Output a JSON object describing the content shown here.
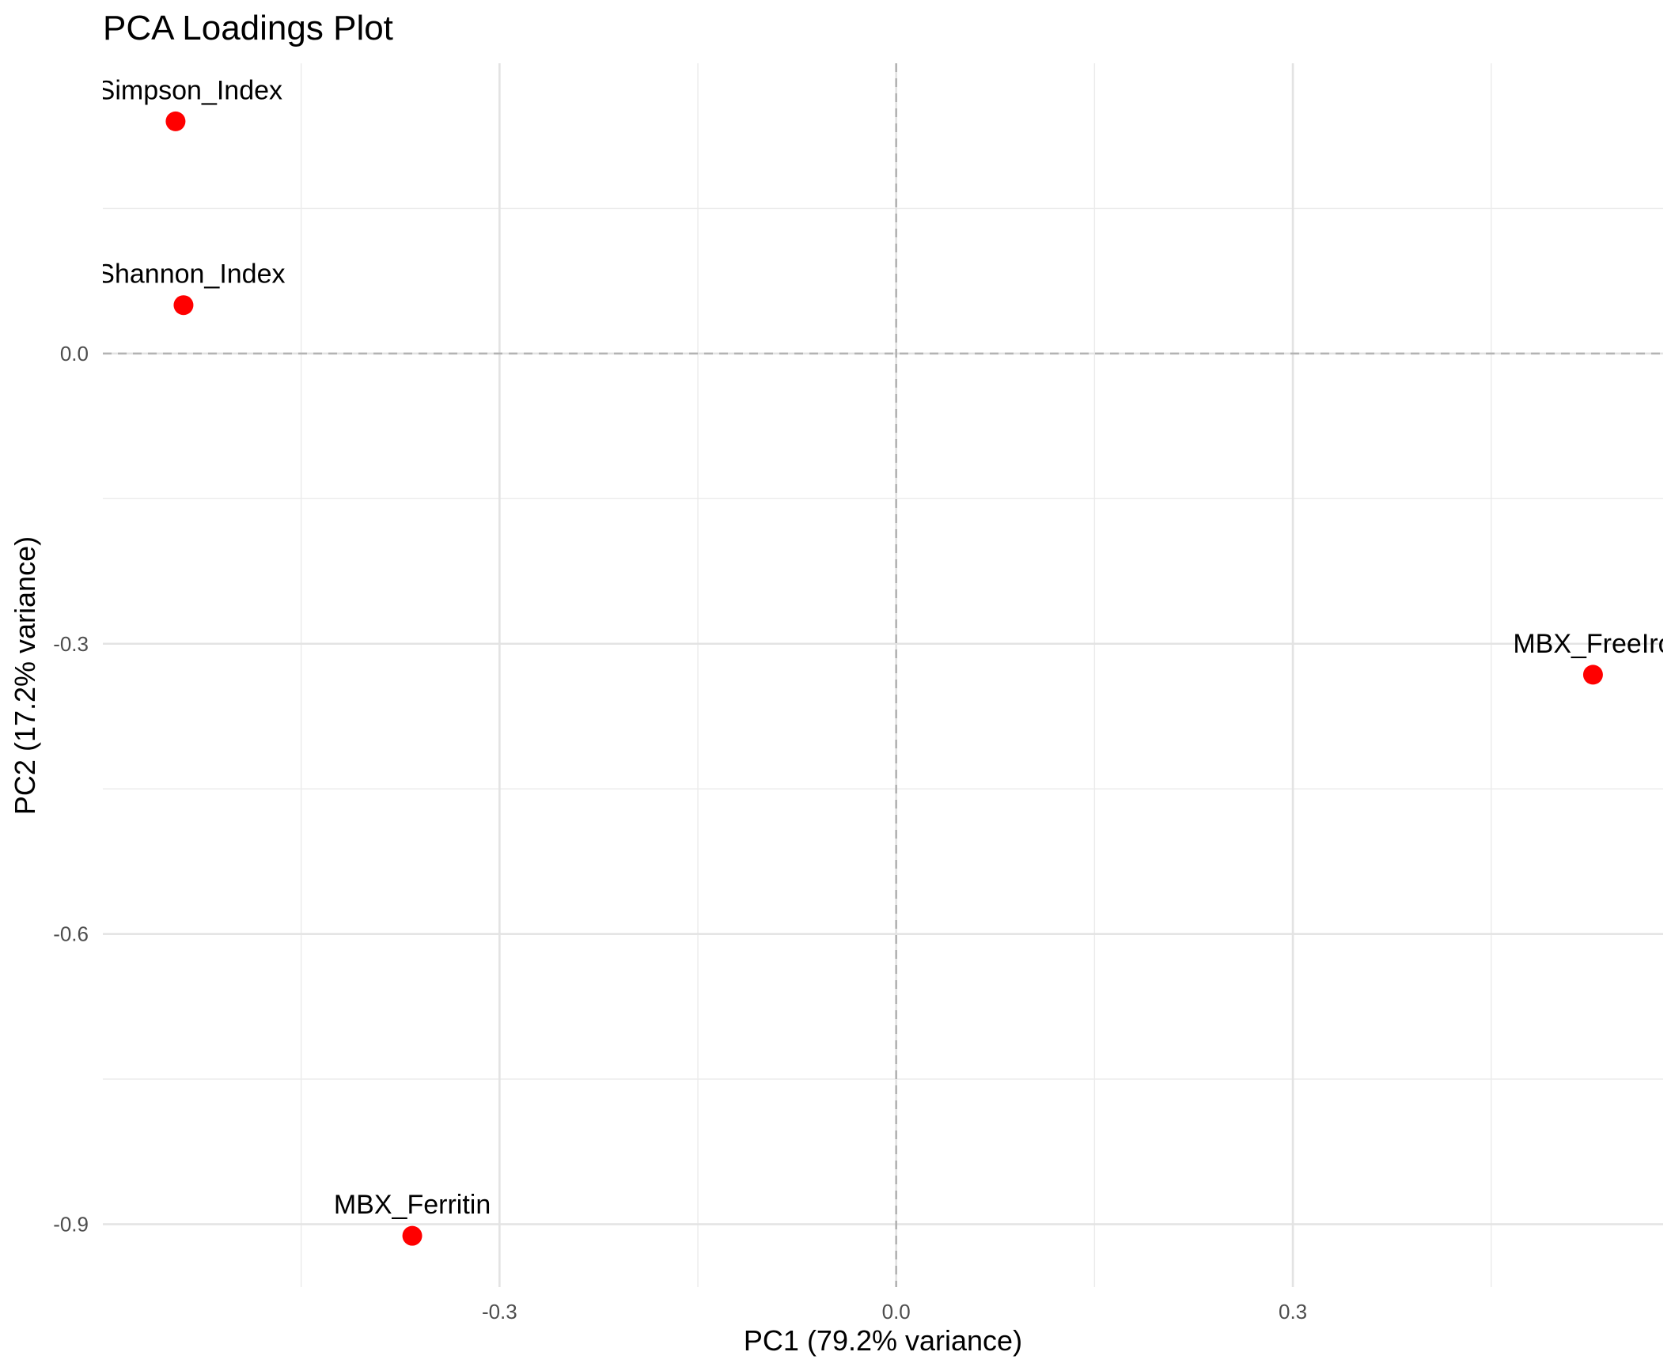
{
  "chart_data": {
    "type": "scatter",
    "title": "PCA Loadings Plot",
    "xlabel": "PC1 (79.2% variance)",
    "ylabel": "PC2 (17.2% variance)",
    "xlim": [
      -0.6,
      0.58
    ],
    "ylim": [
      -0.965,
      0.3
    ],
    "x_ticks": [
      -0.3,
      0.0,
      0.3
    ],
    "x_tick_labels": [
      "-0.3",
      "0.0",
      "0.3"
    ],
    "y_ticks": [
      -0.9,
      -0.6,
      -0.3,
      0.0
    ],
    "y_tick_labels": [
      "-0.9",
      "-0.6",
      "-0.3",
      "0.0"
    ],
    "x_minor_ticks": [
      -0.45,
      -0.15,
      0.15,
      0.45
    ],
    "y_minor_ticks": [
      -0.75,
      -0.45,
      -0.15,
      0.15
    ],
    "grid": true,
    "reference_lines": {
      "x": 0.0,
      "y": 0.0,
      "style": "dashed",
      "color": "#b3b3b3"
    },
    "point_color": "#ff0000",
    "points": [
      {
        "label": "nvSimpson_Index",
        "x": -0.545,
        "y": 0.24
      },
      {
        "label": "_Shannon_Index",
        "x": -0.539,
        "y": 0.05
      },
      {
        "label": "MBX_FreeIro",
        "x": 0.527,
        "y": -0.332
      },
      {
        "label": "MBX_Ferritin",
        "x": -0.366,
        "y": -0.912
      }
    ]
  }
}
